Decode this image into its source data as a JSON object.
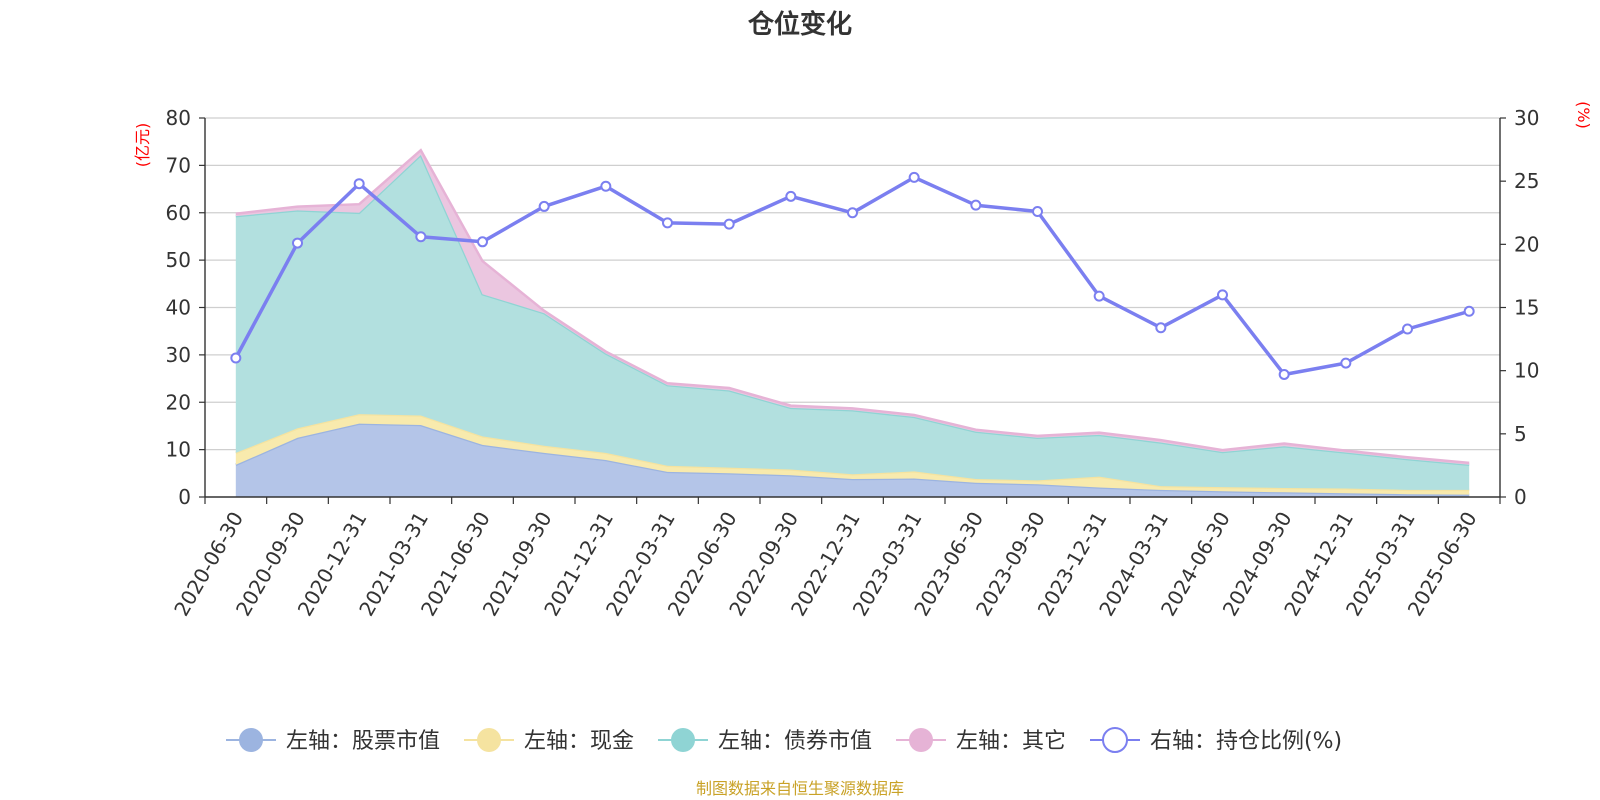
{
  "chart_data": {
    "type": "area",
    "title": "仓位变化",
    "left_axis_unit": "(亿元)",
    "right_axis_unit": "(%)",
    "source": "制图数据来自恒生聚源数据库",
    "categories": [
      "2020-06-30",
      "2020-09-30",
      "2020-12-31",
      "2021-03-31",
      "2021-06-30",
      "2021-09-30",
      "2021-12-31",
      "2022-03-31",
      "2022-06-30",
      "2022-09-30",
      "2022-12-31",
      "2023-03-31",
      "2023-06-30",
      "2023-09-30",
      "2023-12-31",
      "2024-03-31",
      "2024-06-30",
      "2024-09-30",
      "2024-12-31",
      "2025-03-31",
      "2025-06-30"
    ],
    "left_ylim": [
      0,
      80
    ],
    "left_yticks": [
      "0",
      "10",
      "20",
      "30",
      "40",
      "50",
      "60",
      "70",
      "80"
    ],
    "right_ylim": [
      0,
      30
    ],
    "right_yticks": [
      "0",
      "5",
      "10",
      "15",
      "20",
      "25",
      "30"
    ],
    "grid": true,
    "legend_position": "bottom",
    "series": [
      {
        "name": "左轴：股票市值",
        "axis": "left",
        "color": "#9cb4e0",
        "fill": "#b4c5e8",
        "values": [
          6.8,
          12.5,
          15.5,
          15.2,
          11.0,
          9.3,
          7.8,
          5.3,
          5.0,
          4.6,
          3.8,
          3.9,
          3.0,
          2.7,
          2.0,
          1.5,
          1.2,
          1.0,
          0.8,
          0.6,
          0.5
        ]
      },
      {
        "name": "左轴：现金",
        "axis": "left",
        "color": "#f5e3a0",
        "fill": "#f8eaad",
        "values": [
          2.5,
          2.0,
          2.0,
          2.0,
          1.8,
          1.5,
          1.5,
          1.3,
          1.2,
          1.2,
          1.0,
          1.5,
          0.8,
          0.8,
          2.3,
          0.8,
          0.9,
          0.9,
          1.0,
          0.9,
          1.0
        ]
      },
      {
        "name": "左轴：债券市值",
        "axis": "left",
        "color": "#8fd4d4",
        "fill": "#b2e0df",
        "values": [
          50.0,
          46.0,
          42.5,
          55.0,
          30.0,
          28.0,
          21.0,
          17.0,
          16.3,
          13.0,
          13.5,
          11.5,
          10.0,
          9.0,
          8.8,
          9.2,
          7.4,
          8.8,
          7.6,
          6.5,
          5.3
        ]
      },
      {
        "name": "左轴：其它",
        "axis": "left",
        "color": "#e6b3d6",
        "fill": "#ebc6e0",
        "values": [
          0.5,
          0.8,
          1.8,
          1.0,
          7.0,
          0.5,
          0.4,
          0.4,
          0.5,
          0.5,
          0.4,
          0.4,
          0.4,
          0.4,
          0.5,
          0.5,
          0.4,
          0.6,
          0.4,
          0.4,
          0.4
        ]
      },
      {
        "name": "右轴：持仓比例(%)",
        "axis": "right",
        "color": "#7b7ff0",
        "values": [
          11.0,
          20.1,
          24.8,
          20.6,
          20.2,
          23.0,
          24.6,
          21.7,
          21.6,
          23.8,
          22.5,
          25.3,
          23.1,
          22.6,
          15.9,
          13.4,
          16.0,
          9.7,
          10.6,
          13.3,
          14.7
        ]
      }
    ]
  }
}
